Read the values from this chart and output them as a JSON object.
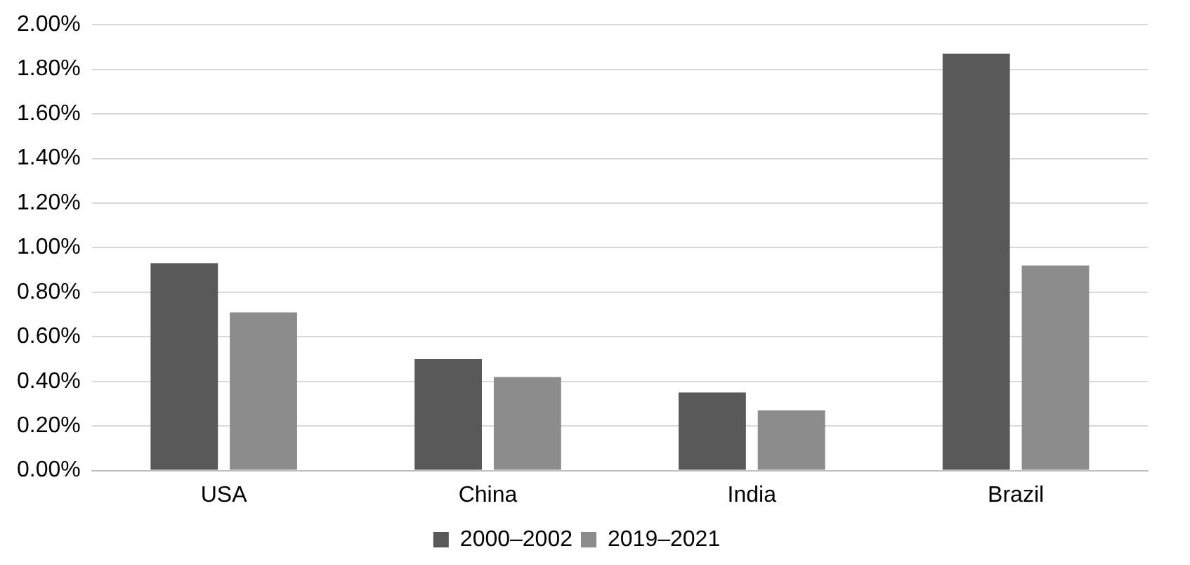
{
  "chart_data": {
    "type": "bar",
    "categories": [
      "USA",
      "China",
      "India",
      "Brazil"
    ],
    "series": [
      {
        "name": "2000–2002",
        "color": "#595959",
        "values": [
          0.93,
          0.5,
          0.35,
          1.87
        ]
      },
      {
        "name": "2019–2021",
        "color": "#8c8c8c",
        "values": [
          0.71,
          0.42,
          0.27,
          0.92
        ]
      }
    ],
    "ylim": [
      0,
      2
    ],
    "yticks": [
      {
        "value": 0,
        "label": "0.00%"
      },
      {
        "value": 0.2,
        "label": "0.20%"
      },
      {
        "value": 0.4,
        "label": "0.40%"
      },
      {
        "value": 0.6,
        "label": "0.60%"
      },
      {
        "value": 0.8,
        "label": "0.80%"
      },
      {
        "value": 1,
        "label": "1.00%"
      },
      {
        "value": 1.2,
        "label": "1.20%"
      },
      {
        "value": 1.4,
        "label": "1.40%"
      },
      {
        "value": 1.6,
        "label": "1.60%"
      },
      {
        "value": 1.8,
        "label": "1.80%"
      },
      {
        "value": 2,
        "label": "2.00%"
      }
    ],
    "grid": "y",
    "legend": "bottom"
  }
}
